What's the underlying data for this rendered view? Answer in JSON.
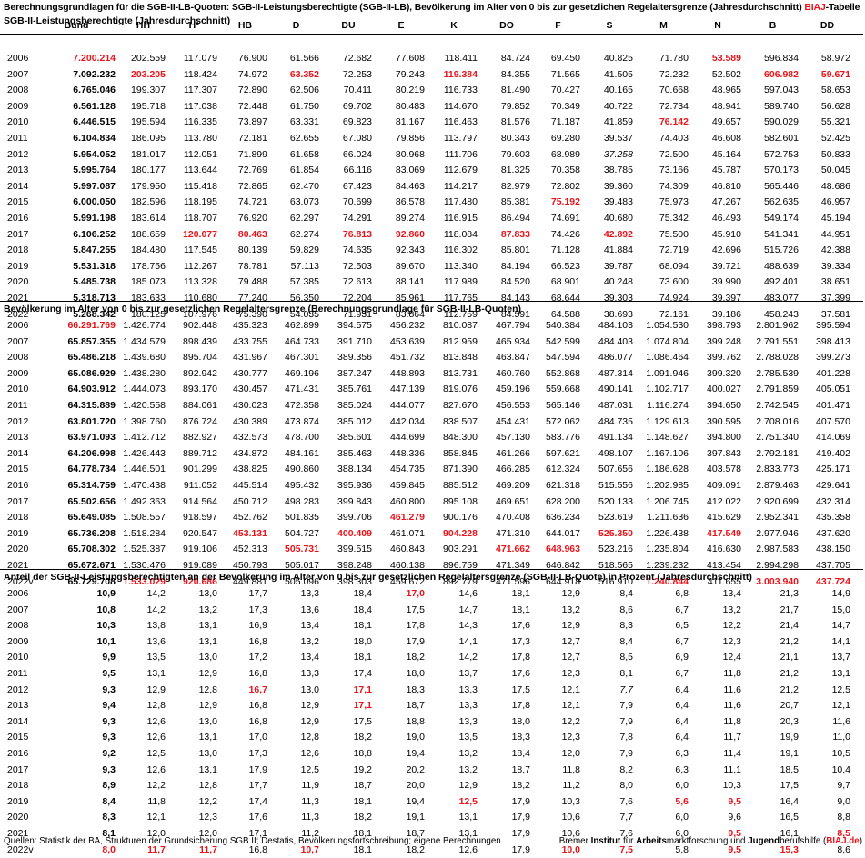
{
  "header": {
    "title": "Berechnungsgrundlagen für die SGB-II-LB-Quoten: SGB-II-Leistungsberechtigte (SGB-II-LB), Bevölkerung im Alter von 0 bis zur gesetzlichen Regelaltersgrenze (Jahresdurchschnitt)",
    "tag": "BIAJ",
    "tag_suffix": "-Tabelle"
  },
  "colors": {
    "highlight": "#e8141b",
    "text": "#000000"
  },
  "columns": [
    "",
    "Bund",
    "HH",
    "H*",
    "HB",
    "D",
    "DU",
    "E",
    "K",
    "DO",
    "F",
    "S",
    "M",
    "N",
    "B",
    "DD",
    "L"
  ],
  "sections": [
    {
      "title": "SGB-II-Leistungsberechtigte (Jahresdurchschnitt)",
      "rows": [
        [
          "2006",
          "r:7.200.214",
          "202.559",
          "117.079",
          "76.900",
          "61.566",
          "72.682",
          "77.608",
          "118.411",
          "84.724",
          "69.450",
          "40.825",
          "71.780",
          "r:53.589",
          "596.834",
          "58.972",
          "84.031"
        ],
        [
          "2007",
          "b:7.092.232",
          "r:203.205",
          "118.424",
          "74.972",
          "r:63.352",
          "72.253",
          "79.243",
          "r:119.384",
          "84.355",
          "71.565",
          "41.505",
          "72.232",
          "52.502",
          "r:606.982",
          "r:59.671",
          "r:84.474"
        ],
        [
          "2008",
          "b:6.765.046",
          "199.307",
          "117.307",
          "72.890",
          "62.506",
          "70.411",
          "80.219",
          "116.733",
          "81.490",
          "70.427",
          "40.165",
          "70.668",
          "48.965",
          "597.043",
          "58.653",
          "82.612"
        ],
        [
          "2009",
          "b:6.561.128",
          "195.718",
          "117.038",
          "72.448",
          "61.750",
          "69.702",
          "80.483",
          "114.670",
          "79.852",
          "70.349",
          "40.722",
          "72.734",
          "48.941",
          "589.740",
          "56.628",
          "79.956"
        ],
        [
          "2010",
          "b:6.446.515",
          "195.594",
          "116.335",
          "73.897",
          "63.331",
          "69.823",
          "81.167",
          "116.463",
          "81.576",
          "71.187",
          "41.859",
          "r:76.142",
          "49.657",
          "590.029",
          "55.321",
          "77.576"
        ],
        [
          "2011",
          "b:6.104.834",
          "186.095",
          "113.780",
          "72.181",
          "62.655",
          "67.080",
          "79.856",
          "113.797",
          "80.343",
          "69.280",
          "39.537",
          "74.403",
          "46.608",
          "582.601",
          "52.425",
          "74.584"
        ],
        [
          "2012",
          "b:5.954.052",
          "181.017",
          "112.051",
          "71.899",
          "61.658",
          "66.024",
          "80.968",
          "111.706",
          "79.603",
          "68.989",
          "i:37.258",
          "72.500",
          "45.164",
          "572.753",
          "50.833",
          "71.522"
        ],
        [
          "2013",
          "b:5.995.764",
          "180.177",
          "113.644",
          "72.769",
          "61.854",
          "66.116",
          "83.069",
          "112.679",
          "81.325",
          "70.358",
          "38.785",
          "73.166",
          "45.787",
          "570.173",
          "50.045",
          "71.217"
        ],
        [
          "2014",
          "b:5.997.087",
          "179.950",
          "115.418",
          "72.865",
          "62.470",
          "67.423",
          "84.463",
          "114.217",
          "82.979",
          "72.802",
          "39.360",
          "74.309",
          "46.810",
          "565.446",
          "48.686",
          "70.362"
        ],
        [
          "2015",
          "b:6.000.050",
          "182.596",
          "118.195",
          "74.721",
          "63.073",
          "70.699",
          "86.578",
          "117.480",
          "85.381",
          "r:75.192",
          "39.483",
          "75.973",
          "47.267",
          "562.635",
          "46.957",
          "69.354"
        ],
        [
          "2016",
          "b:5.991.198",
          "183.614",
          "118.707",
          "76.920",
          "62.297",
          "74.291",
          "89.274",
          "116.915",
          "86.494",
          "74.691",
          "40.680",
          "75.342",
          "46.493",
          "549.174",
          "45.194",
          "67.584"
        ],
        [
          "2017",
          "b:6.106.252",
          "188.659",
          "r:120.077",
          "r:80.463",
          "62.274",
          "r:76.813",
          "r:92.860",
          "118.084",
          "r:87.833",
          "74.426",
          "r:42.892",
          "75.500",
          "45.910",
          "541.341",
          "44.951",
          "66.657"
        ],
        [
          "2018",
          "b:5.847.255",
          "184.480",
          "117.545",
          "80.139",
          "59.829",
          "74.635",
          "92.343",
          "116.302",
          "85.801",
          "71.128",
          "41.884",
          "72.719",
          "42.696",
          "515.726",
          "42.388",
          "63.409"
        ],
        [
          "2019",
          "b:5.531.318",
          "178.756",
          "112.267",
          "78.781",
          "57.113",
          "72.503",
          "89.670",
          "113.340",
          "84.194",
          "66.523",
          "39.787",
          "68.094",
          "39.721",
          "488.639",
          "39.334",
          "58.656"
        ],
        [
          "2020",
          "b:5.485.738",
          "185.073",
          "113.328",
          "79.488",
          "57.385",
          "72.613",
          "88.141",
          "117.989",
          "84.520",
          "68.901",
          "40.248",
          "73.600",
          "39.990",
          "492.401",
          "38.651",
          "57.653"
        ],
        [
          "2021",
          "b:5.318.713",
          "183.633",
          "110.680",
          "77.240",
          "56.350",
          "72.204",
          "85.961",
          "117.765",
          "84.143",
          "68.644",
          "39.303",
          "74.924",
          "39.397",
          "483.077",
          "37.399",
          "54.955"
        ],
        [
          "2022",
          "b:5.268.342",
          "180.125",
          "107.976",
          "75.390",
          "54.035",
          "71.931",
          "83.864",
          "112.759",
          "84.591",
          "64.588",
          "38.693",
          "72.161",
          "39.186",
          "458.243",
          "37.581",
          "52.717"
        ]
      ]
    },
    {
      "title": "Bevölkerung im Alter von 0 bis zur gesetzlichen Regelaltersgrenze (Berechnungsgrundlage für SGB-II-LB-Quoten)",
      "rows": [
        [
          "2006",
          "r:66.291.769",
          "1.426.774",
          "902.448",
          "435.323",
          "462.899",
          "394.575",
          "456.232",
          "810.087",
          "467.794",
          "540.384",
          "484.103",
          "1.054.530",
          "398.793",
          "2.801.962",
          "395.594",
          "396.208"
        ],
        [
          "2007",
          "b:65.857.355",
          "1.434.579",
          "898.439",
          "433.755",
          "464.733",
          "391.710",
          "453.639",
          "812.959",
          "465.934",
          "542.599",
          "484.403",
          "1.074.804",
          "399.248",
          "2.791.551",
          "398.413",
          "397.019"
        ],
        [
          "2008",
          "b:65.486.218",
          "1.439.680",
          "895.704",
          "431.967",
          "467.301",
          "389.356",
          "451.732",
          "813.848",
          "463.847",
          "547.594",
          "486.077",
          "1.086.464",
          "399.762",
          "2.788.028",
          "399.273",
          "399.006"
        ],
        [
          "2009",
          "b:65.086.929",
          "1.438.280",
          "892.942",
          "430.777",
          "469.196",
          "387.247",
          "448.893",
          "813.731",
          "460.760",
          "552.868",
          "487.314",
          "1.091.946",
          "399.320",
          "2.785.539",
          "401.228",
          "400.876"
        ],
        [
          "2010",
          "b:64.903.912",
          "1.444.073",
          "893.170",
          "430.457",
          "471.431",
          "385.761",
          "447.139",
          "819.076",
          "459.196",
          "559.668",
          "490.141",
          "1.102.717",
          "400.027",
          "2.791.859",
          "405.051",
          "403.628"
        ],
        [
          "2011",
          "b:64.315.889",
          "1.420.558",
          "884.061",
          "430.023",
          "472.358",
          "385.024",
          "444.077",
          "827.670",
          "456.553",
          "565.146",
          "487.031",
          "1.116.274",
          "394.650",
          "2.742.545",
          "401.471",
          "400.794"
        ],
        [
          "2012",
          "b:63.801.720",
          "1.398.760",
          "876.724",
          "430.389",
          "473.874",
          "385.012",
          "442.034",
          "838.507",
          "454.431",
          "572.062",
          "484.735",
          "1.129.613",
          "390.595",
          "2.708.016",
          "407.570",
          "401.297"
        ],
        [
          "2013",
          "b:63.971.093",
          "1.412.712",
          "882.927",
          "432.573",
          "478.700",
          "385.601",
          "444.699",
          "848.300",
          "457.130",
          "583.776",
          "491.134",
          "1.148.627",
          "394.800",
          "2.751.340",
          "414.069",
          "412.268"
        ],
        [
          "2014",
          "b:64.206.998",
          "1.426.443",
          "889.712",
          "434.872",
          "484.161",
          "385.463",
          "448.336",
          "858.845",
          "461.266",
          "597.621",
          "498.107",
          "1.167.106",
          "397.843",
          "2.792.181",
          "419.402",
          "424.051"
        ],
        [
          "2015",
          "b:64.778.734",
          "1.446.501",
          "901.299",
          "438.825",
          "490.860",
          "388.134",
          "454.735",
          "871.390",
          "466.285",
          "612.324",
          "507.656",
          "1.186.628",
          "403.578",
          "2.833.773",
          "425.171",
          "437.917"
        ],
        [
          "2016",
          "b:65.314.759",
          "1.470.438",
          "911.052",
          "445.514",
          "495.432",
          "395.936",
          "459.845",
          "885.512",
          "469.209",
          "621.318",
          "515.556",
          "1.202.985",
          "409.091",
          "2.879.463",
          "429.641",
          "450.472"
        ],
        [
          "2017",
          "b:65.502.656",
          "1.492.363",
          "914.564",
          "450.712",
          "498.283",
          "399.843",
          "460.800",
          "895.108",
          "469.651",
          "628.200",
          "520.133",
          "1.206.745",
          "412.022",
          "2.920.699",
          "432.314",
          "460.553"
        ],
        [
          "2018",
          "b:65.649.085",
          "1.508.557",
          "918.597",
          "452.762",
          "501.835",
          "399.706",
          "r:461.279",
          "900.176",
          "470.408",
          "636.234",
          "523.619",
          "1.211.636",
          "415.629",
          "2.952.341",
          "435.358",
          "468.476"
        ],
        [
          "2019",
          "b:65.736.208",
          "1.518.284",
          "920.547",
          "r:453.131",
          "504.727",
          "r:400.409",
          "461.071",
          "r:904.228",
          "471.310",
          "644.017",
          "r:525.350",
          "1.226.438",
          "r:417.549",
          "2.977.946",
          "437.620",
          "473.638"
        ],
        [
          "2020",
          "b:65.708.302",
          "1.525.387",
          "919.106",
          "452.313",
          "r:505.731",
          "399.515",
          "460.843",
          "903.291",
          "r:471.662",
          "r:648.963",
          "523.216",
          "1.235.804",
          "416.630",
          "2.987.583",
          "438.150",
          "478.213"
        ],
        [
          "2021",
          "b:65.672.671",
          "1.530.476",
          "919.089",
          "450.793",
          "505.017",
          "398.248",
          "460.138",
          "896.759",
          "471.349",
          "646.842",
          "518.565",
          "1.239.232",
          "413.454",
          "2.994.298",
          "437.705",
          "482.906"
        ],
        [
          "2022v",
          "b:65.729.708",
          "r:1.533.029",
          "r:920.686",
          "449.881",
          "505.096",
          "398.303",
          "459.672",
          "892.779",
          "471.596",
          "644.918",
          "516.910",
          "r:1.240.844",
          "411.655",
          "r:3.003.940",
          "r:437.724",
          "r:485.659"
        ]
      ]
    },
    {
      "title": "Anteil der SGB-II-Leistungsberechtigten an der Bevölkerung im Alter von 0 bis zur gesetzlichen Regelaltersgrenze (SGB-II-LB-Quote) in Prozent (Jahresdurchschnitt)",
      "rows": [
        [
          "2006",
          "b:10,9",
          "14,2",
          "13,0",
          "17,7",
          "13,3",
          "18,4",
          "r:17,0",
          "14,6",
          "18,1",
          "12,9",
          "8,4",
          "6,8",
          "13,4",
          "21,3",
          "14,9",
          "21,2"
        ],
        [
          "2007",
          "b:10,8",
          "14,2",
          "13,2",
          "17,3",
          "13,6",
          "18,4",
          "17,5",
          "14,7",
          "18,1",
          "13,2",
          "8,6",
          "6,7",
          "13,2",
          "21,7",
          "15,0",
          "21,3"
        ],
        [
          "2008",
          "b:10,3",
          "13,8",
          "13,1",
          "16,9",
          "13,4",
          "18,1",
          "17,8",
          "14,3",
          "17,6",
          "12,9",
          "8,3",
          "6,5",
          "12,2",
          "21,4",
          "14,7",
          "20,7"
        ],
        [
          "2009",
          "b:10,1",
          "13,6",
          "13,1",
          "16,8",
          "13,2",
          "18,0",
          "17,9",
          "14,1",
          "17,3",
          "12,7",
          "8,4",
          "6,7",
          "12,3",
          "21,2",
          "14,1",
          "19,9"
        ],
        [
          "2010",
          "b:9,9",
          "13,5",
          "13,0",
          "17,2",
          "13,4",
          "18,1",
          "18,2",
          "14,2",
          "17,8",
          "12,7",
          "8,5",
          "6,9",
          "12,4",
          "21,1",
          "13,7",
          "19,2"
        ],
        [
          "2011",
          "b:9,5",
          "13,1",
          "12,9",
          "16,8",
          "13,3",
          "17,4",
          "18,0",
          "13,7",
          "17,6",
          "12,3",
          "8,1",
          "6,7",
          "11,8",
          "21,2",
          "13,1",
          "18,6"
        ],
        [
          "2012",
          "b:9,3",
          "12,9",
          "12,8",
          "r:16,7",
          "13,0",
          "r:17,1",
          "18,3",
          "13,3",
          "17,5",
          "12,1",
          "i:7,7",
          "6,4",
          "11,6",
          "21,2",
          "12,5",
          "17,8"
        ],
        [
          "2013",
          "b:9,4",
          "12,8",
          "12,9",
          "16,8",
          "12,9",
          "r:17,1",
          "18,7",
          "13,3",
          "17,8",
          "12,1",
          "7,9",
          "6,4",
          "11,6",
          "20,7",
          "12,1",
          "17,3"
        ],
        [
          "2014",
          "b:9,3",
          "12,6",
          "13,0",
          "16,8",
          "12,9",
          "17,5",
          "18,8",
          "13,3",
          "18,0",
          "12,2",
          "7,9",
          "6,4",
          "11,8",
          "20,3",
          "11,6",
          "16,6"
        ],
        [
          "2015",
          "b:9,3",
          "12,6",
          "13,1",
          "17,0",
          "12,8",
          "18,2",
          "19,0",
          "13,5",
          "18,3",
          "12,3",
          "7,8",
          "6,4",
          "11,7",
          "19,9",
          "11,0",
          "15,8"
        ],
        [
          "2016",
          "b:9,2",
          "12,5",
          "13,0",
          "17,3",
          "12,6",
          "18,8",
          "19,4",
          "13,2",
          "18,4",
          "12,0",
          "7,9",
          "6,3",
          "11,4",
          "19,1",
          "10,5",
          "15,0"
        ],
        [
          "2017",
          "b:9,3",
          "12,6",
          "13,1",
          "17,9",
          "12,5",
          "19,2",
          "20,2",
          "13,2",
          "18,7",
          "11,8",
          "8,2",
          "6,3",
          "11,1",
          "18,5",
          "10,4",
          "14,5"
        ],
        [
          "2018",
          "b:8,9",
          "12,2",
          "12,8",
          "17,7",
          "11,9",
          "18,7",
          "20,0",
          "12,9",
          "18,2",
          "11,2",
          "8,0",
          "6,0",
          "10,3",
          "17,5",
          "9,7",
          "13,5"
        ],
        [
          "2019",
          "b:8,4",
          "11,8",
          "12,2",
          "17,4",
          "11,3",
          "18,1",
          "19,4",
          "r:12,5",
          "17,9",
          "10,3",
          "7,6",
          "r:5,6",
          "r:9,5",
          "16,4",
          "9,0",
          "12,4"
        ],
        [
          "2020",
          "b:8,3",
          "12,1",
          "12,3",
          "17,6",
          "11,3",
          "18,2",
          "19,1",
          "13,1",
          "17,9",
          "10,6",
          "7,7",
          "6,0",
          "9,6",
          "16,5",
          "8,8",
          "12,1"
        ],
        [
          "2021",
          "b:8,1",
          "12,0",
          "12,0",
          "17,1",
          "11,2",
          "18,1",
          "18,7",
          "13,1",
          "17,9",
          "10,6",
          "7,6",
          "6,0",
          "r:9,5",
          "16,1",
          "r:8,5",
          "11,4"
        ],
        [
          "2022v",
          "r:8,0",
          "r:11,7",
          "r:11,7",
          "16,8",
          "r:10,7",
          "18,1",
          "18,2",
          "12,6",
          "17,9",
          "r:10,0",
          "r:7,5",
          "5,8",
          "r:9,5",
          "r:15,3",
          "8,6",
          "r:10,9"
        ]
      ]
    }
  ],
  "footer": {
    "source": "Quellen: Statistik der BA, Strukturen der Grundsicherung SGB II; Destatis, Bevölkerungsfortschreibung; eigene Berechnungen",
    "pub": [
      "Bremer ",
      "Institut",
      " für ",
      "Arbeits",
      "marktforschung und ",
      "Jugend",
      "berufshilfe (",
      "BIAJ.de",
      ")"
    ]
  }
}
